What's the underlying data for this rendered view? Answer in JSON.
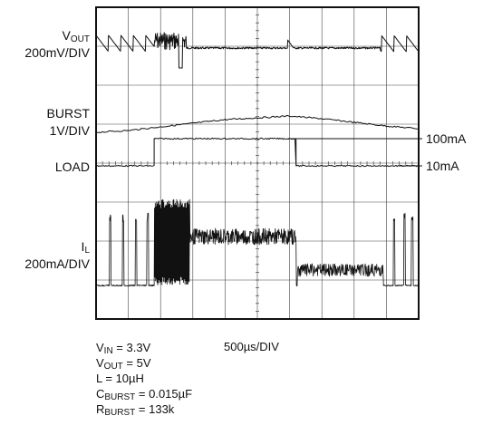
{
  "chart_data": {
    "type": "line",
    "title": "",
    "xlabel": "500µs/DIV",
    "x_divisions": 10,
    "y_divisions": 8,
    "grid": true,
    "x": [
      0,
      0.5,
      1.0,
      1.5,
      2.0,
      2.5,
      3.0,
      3.5,
      4.0,
      4.5,
      5.0
    ],
    "series": [
      {
        "name": "VOUT",
        "scale": "200mV/DIV",
        "values": [
          0,
          -0.1,
          -0.2,
          -0.5,
          -0.1,
          0,
          0.15,
          -0.1,
          0,
          0,
          0
        ],
        "note": "sawtooth ripple, burst noise and dip near 1.0–1.4ms"
      },
      {
        "name": "BURST",
        "scale": "1V/DIV",
        "values": [
          0,
          0.1,
          0.3,
          0.5,
          0.7,
          0.8,
          0.9,
          0.75,
          0.55,
          0.35,
          0.2
        ]
      },
      {
        "name": "LOAD",
        "levels": [
          "10mA",
          "100mA"
        ],
        "values": [
          10,
          10,
          100,
          100,
          100,
          100,
          100,
          10,
          10,
          10,
          10
        ],
        "step_up_ms": 0.9,
        "step_down_ms": 3.1
      },
      {
        "name": "IL",
        "scale": "200mA/DIV",
        "values": [
          0,
          0,
          2,
          2,
          1.7,
          1.2,
          1.2,
          0.35,
          0.35,
          0.35,
          0
        ],
        "note": "discrete spikes at low load, dense burst then continuous band at 100mA"
      }
    ],
    "labels": {
      "vout_name": "V",
      "vout_sub": "OUT",
      "vout_scale": "200mV/DIV",
      "burst_name": "BURST",
      "burst_scale": "1V/DIV",
      "load_name": "LOAD",
      "il_name": "I",
      "il_sub": "L",
      "il_scale": "200mA/DIV",
      "level_high": "100mA",
      "level_low": "10mA",
      "timebase": "500µs/DIV"
    },
    "conditions": {
      "vin_name": "V",
      "vin_sub": "IN",
      "vin_value": " = 3.3V",
      "vout_name": "V",
      "vout_sub": "OUT",
      "vout_value": " = 5V",
      "l_text": "L = 10µH",
      "cburst_name": "C",
      "cburst_sub": "BURST",
      "cburst_value": " = 0.015µF",
      "rburst_name": "R",
      "rburst_sub": "BURST",
      "rburst_value": " = 133k"
    }
  }
}
